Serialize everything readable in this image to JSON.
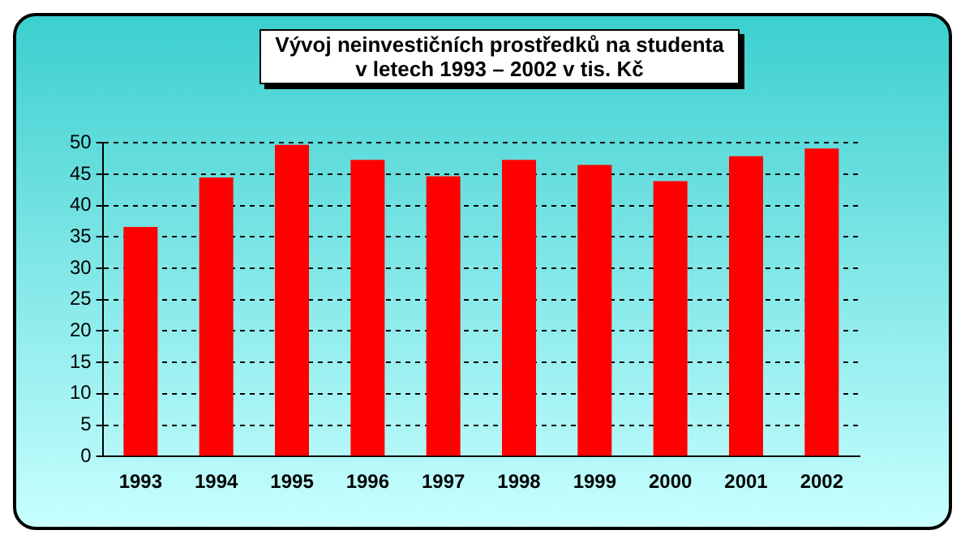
{
  "chart_data": {
    "type": "bar",
    "title": "Vývoj neinvestičních prostředků na studenta\nv letech 1993 – 2002 v tis. Kč",
    "categories": [
      "1993",
      "1994",
      "1995",
      "1996",
      "1997",
      "1998",
      "1999",
      "2000",
      "2001",
      "2002"
    ],
    "values": [
      36.6,
      44.5,
      49.7,
      47.3,
      44.7,
      47.3,
      46.5,
      43.9,
      47.9,
      49.1
    ],
    "color": "#ff0000",
    "ylim": [
      0,
      50
    ],
    "yticks": [
      0,
      5,
      10,
      15,
      20,
      25,
      30,
      35,
      40,
      45,
      50
    ],
    "grid": "y",
    "legend": false
  }
}
